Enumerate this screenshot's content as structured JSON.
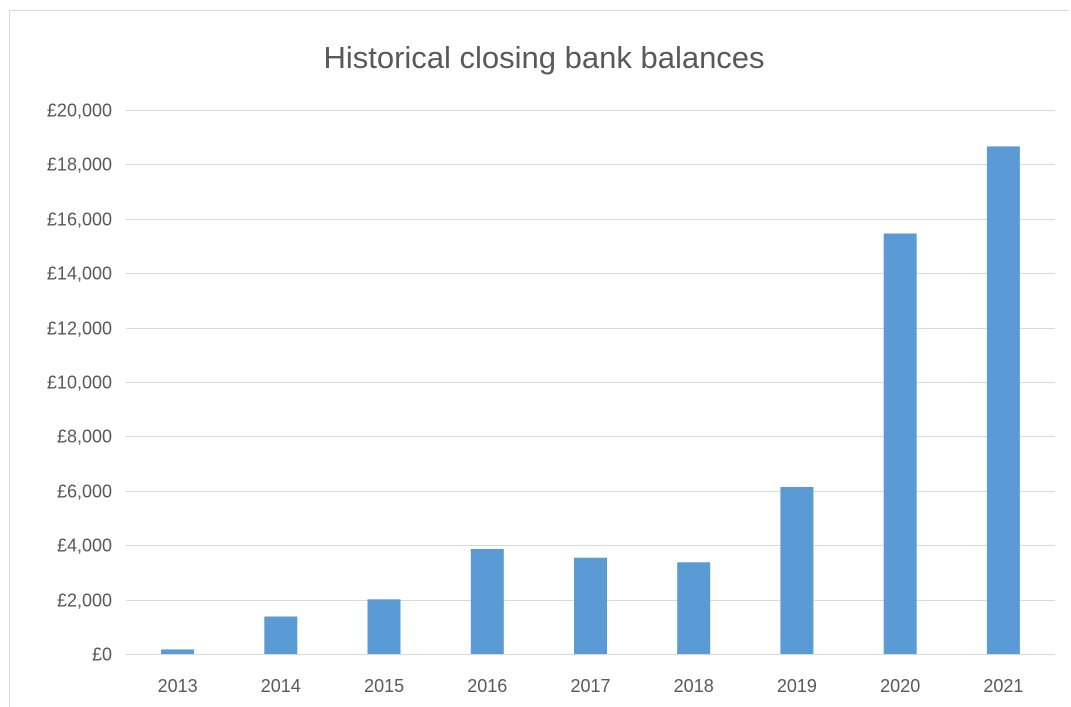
{
  "chart_data": {
    "type": "bar",
    "title": "Historical closing bank balances",
    "xlabel": "",
    "ylabel": "",
    "categories": [
      "2013",
      "2014",
      "2015",
      "2016",
      "2017",
      "2018",
      "2019",
      "2020",
      "2021"
    ],
    "series": [
      {
        "values": [
          170,
          1380,
          2010,
          3860,
          3540,
          3370,
          6140,
          15460,
          18660
        ]
      }
    ],
    "ylim": [
      0,
      20000
    ],
    "yticks": [
      0,
      2000,
      4000,
      6000,
      8000,
      10000,
      12000,
      14000,
      16000,
      18000,
      20000
    ],
    "ytick_labels": [
      "£0",
      "£2,000",
      "£4,000",
      "£6,000",
      "£8,000",
      "£10,000",
      "£12,000",
      "£14,000",
      "£16,000",
      "£18,000",
      "£20,000"
    ],
    "grid": true,
    "legend": "none",
    "bar_color": "#5b9bd5",
    "grid_color": "#d9d9d9",
    "text_color": "#595959"
  }
}
